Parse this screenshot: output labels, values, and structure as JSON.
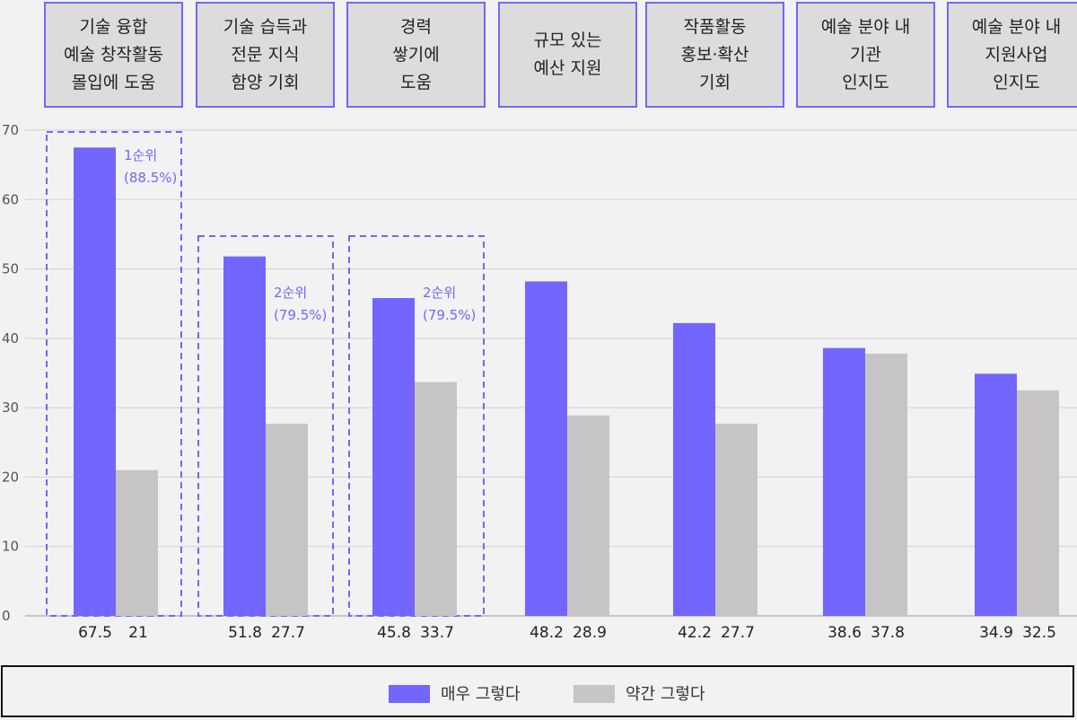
{
  "chart_data": {
    "type": "bar",
    "categories": [
      "기술 융합\n예술 창작활동\n몰입에 도움",
      "기술 습득과\n전문 지식\n함양 기회",
      "경력\n쌓기에\n도움",
      "규모 있는\n예산 지원",
      "작품활동\n홍보·확산\n기회",
      "예술 분야 내\n기관\n인지도",
      "예술 분야 내\n지원사업\n인지도"
    ],
    "series": [
      {
        "name": "매우 그렇다",
        "color": "#7266ff",
        "values": [
          67.5,
          51.8,
          45.8,
          48.2,
          42.2,
          38.6,
          34.9
        ]
      },
      {
        "name": "약간 그렇다",
        "color": "#c6c4c4",
        "values": [
          21,
          27.7,
          33.7,
          28.9,
          27.7,
          37.8,
          32.5
        ]
      }
    ],
    "ylim": [
      0,
      70
    ],
    "yticks": [
      0,
      10,
      20,
      30,
      40,
      50,
      60,
      70
    ],
    "grid": true,
    "legend_position": "bottom",
    "annotations": [
      {
        "category_index": 0,
        "line1": "1순위",
        "line2": "(88.5%)"
      },
      {
        "category_index": 1,
        "line1": "2순위",
        "line2": "(79.5%)"
      },
      {
        "category_index": 2,
        "line1": "2순위",
        "line2": "(79.5%)"
      }
    ],
    "highlight_color": "#6e68ff"
  }
}
